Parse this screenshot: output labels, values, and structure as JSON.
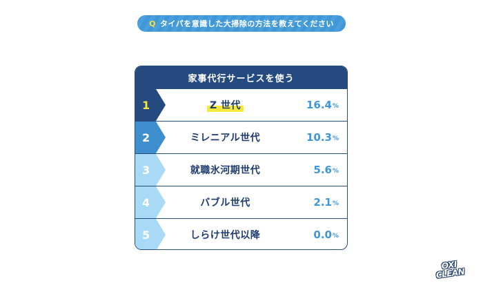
{
  "question": {
    "badge": "Q",
    "text": "タイパを意識した大掃除の方法を教えてください"
  },
  "ranking": {
    "title": "家事代行サービスを使う",
    "rows": [
      {
        "rank": "1",
        "label": "Z 世代",
        "value": "16.4",
        "unit": "%",
        "tag_color": "#254a7f",
        "rank_color": "#f5ea3c"
      },
      {
        "rank": "2",
        "label": "ミレニアル世代",
        "value": "10.3",
        "unit": "%",
        "tag_color": "#3f8fcf",
        "rank_color": "#ffffff"
      },
      {
        "rank": "3",
        "label": "就職氷河期世代",
        "value": "5.6",
        "unit": "%",
        "tag_color": "#a8daf5",
        "rank_color": "#ffffff"
      },
      {
        "rank": "4",
        "label": "バブル世代",
        "value": "2.1",
        "unit": "%",
        "tag_color": "#a8daf5",
        "rank_color": "#ffffff"
      },
      {
        "rank": "5",
        "label": "しらけ世代以降",
        "value": "0.0",
        "unit": "%",
        "tag_color": "#a8daf5",
        "rank_color": "#ffffff"
      }
    ]
  },
  "logo": {
    "line1": "OXI",
    "line2": "CLEAN"
  },
  "colors": {
    "navy": "#254a7f",
    "accent_blue": "#3f97d8",
    "light_blue": "#a8daf5",
    "yellow": "#f5ea3c"
  },
  "chart_data": {
    "type": "table",
    "title": "タイパを意識した大掃除の方法を教えてください — 家事代行サービスを使う",
    "categories": [
      "Z 世代",
      "ミレニアル世代",
      "就職氷河期世代",
      "バブル世代",
      "しらけ世代以降"
    ],
    "values": [
      16.4,
      10.3,
      5.6,
      2.1,
      0.0
    ],
    "unit": "%",
    "ranks": [
      1,
      2,
      3,
      4,
      5
    ]
  }
}
